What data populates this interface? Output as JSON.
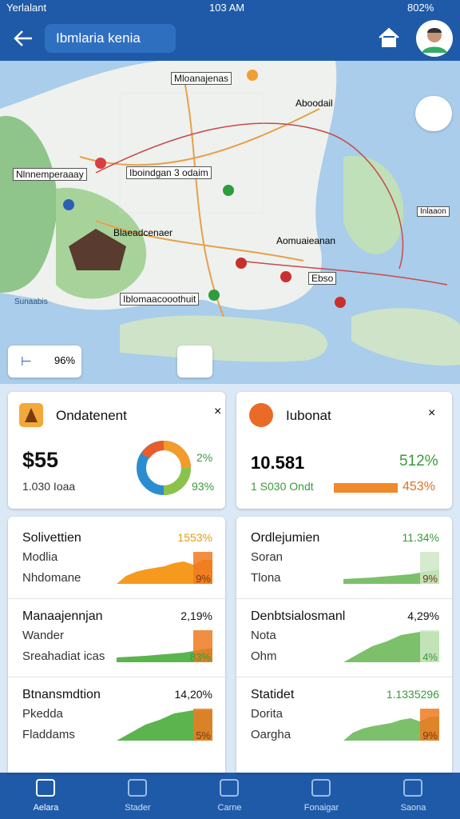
{
  "status_bar": {
    "carrier": "Yerlalant",
    "time": "103 AM",
    "battery": "802%"
  },
  "header": {
    "title": "Ibmlaria kenia"
  },
  "map": {
    "labels": [
      "Mloanajenas",
      "Nlnnemperaaay",
      "Iboindgan 3 odaim",
      "Aboodail",
      "Blaeadcenaer",
      "Aomuaieanan",
      "Iblomaacooothuit",
      "Ebso",
      "Inlaaon",
      "Sunaabis"
    ],
    "zoom_label": "96%"
  },
  "summary_cards": [
    {
      "title": "Ondatenent",
      "value": "$55",
      "subtitle": "1.030 Ioaa",
      "top_percent": "2%",
      "bottom_percent": "93%"
    },
    {
      "title": "Iubonat",
      "value": "10.581",
      "subtitle": "1 S030 Ondt",
      "top_percent": "512%",
      "bottom_percent": "453%"
    }
  ],
  "list_cards": [
    {
      "rows": [
        {
          "title": "Solivettien",
          "percent": "1553%",
          "line1": "Modlia",
          "line2": "Nhdomane",
          "chart_percent": "9%"
        },
        {
          "title": "Manaajennjan",
          "percent": "2,19%",
          "line1": "Wander",
          "line2": "Sreahadiat icas",
          "chart_percent": "83%"
        },
        {
          "title": "Btnansmdtion",
          "percent": "14,20%",
          "line1": "Pkedda",
          "line2": "Fladdams",
          "chart_percent": "5%"
        }
      ]
    },
    {
      "rows": [
        {
          "title": "Ordlejumien",
          "percent": "11.34%",
          "line1": "Soran",
          "line2": "Tlona",
          "chart_percent": "9%"
        },
        {
          "title": "Denbtsialosmanl",
          "percent": "4,29%",
          "line1": "Nota",
          "line2": "Ohm",
          "chart_percent": "4%"
        },
        {
          "title": "Statidet",
          "percent": "1.1335296",
          "line1": "Dorita",
          "line2": "Oargha",
          "chart_percent": "9%"
        }
      ]
    }
  ],
  "bottom_nav": [
    "Aelara",
    "Stader",
    "Carne",
    "Fonaigar",
    "Saona"
  ]
}
